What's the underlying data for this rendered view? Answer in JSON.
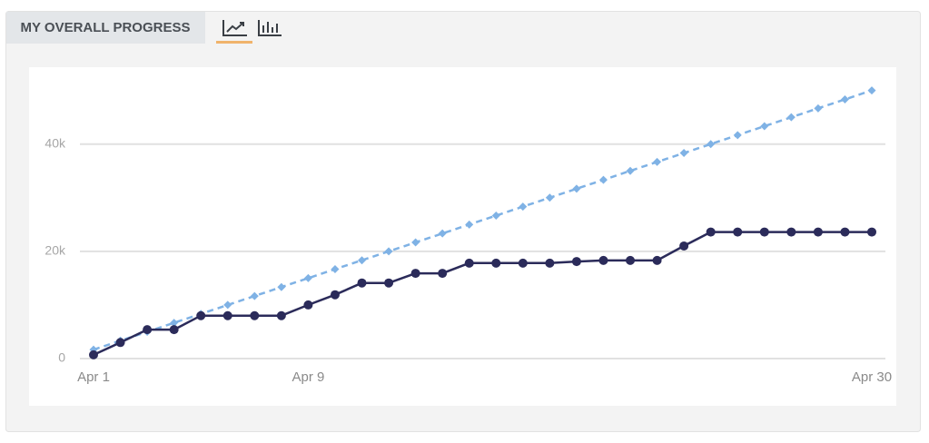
{
  "header": {
    "title": "MY OVERALL PROGRESS"
  },
  "chart_data": {
    "type": "line",
    "categories": [
      "Apr 1",
      null,
      null,
      null,
      null,
      null,
      null,
      null,
      "Apr 9",
      null,
      null,
      null,
      null,
      null,
      null,
      null,
      null,
      null,
      null,
      null,
      null,
      null,
      null,
      null,
      null,
      null,
      null,
      null,
      null,
      "Apr 30"
    ],
    "series": [
      {
        "color": "#7fb2e5",
        "dashed": true,
        "marker": "diamond",
        "values": [
          1667,
          3333,
          5000,
          6667,
          8333,
          10000,
          11667,
          13333,
          15000,
          16667,
          18333,
          20000,
          21667,
          23333,
          25000,
          26667,
          28333,
          30000,
          31667,
          33333,
          35000,
          36667,
          38333,
          40000,
          41667,
          43333,
          45000,
          46667,
          48333,
          50000
        ]
      },
      {
        "color": "#2b2b5a",
        "dashed": false,
        "marker": "circle",
        "values": [
          700,
          3000,
          5400,
          5400,
          8000,
          8000,
          8000,
          8000,
          10000,
          11900,
          14100,
          14100,
          15900,
          15900,
          17800,
          17800,
          17800,
          17800,
          18100,
          18300,
          18300,
          18300,
          21000,
          23600,
          23600,
          23600,
          23600,
          23600,
          23600,
          23600
        ]
      }
    ],
    "ylim": [
      0,
      54000
    ],
    "yticks": [
      0,
      {
        "value": 20000,
        "label": "20k"
      },
      {
        "value": 40000,
        "label": "40k"
      }
    ],
    "grid": true
  }
}
